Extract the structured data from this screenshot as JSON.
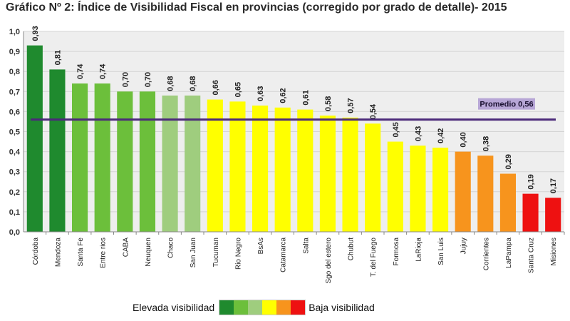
{
  "chart_data": {
    "type": "bar",
    "title": "Gráfico Nº 2: Índice de Visibilidad Fiscal en provincias (corregido por grado de detalle)- 2015",
    "categories": [
      "Córdoba",
      "Mendoza",
      "Santa Fe",
      "Entre rios",
      "CABA",
      "Neuquen",
      "Chaco",
      "San Juan",
      "Tucuman",
      "Rio Negro",
      "BsAs",
      "Catamarca",
      "Salta",
      "Sgo del estero",
      "Chubut",
      "T. del Fuego",
      "Formosa",
      "LaRioja",
      "San Luis",
      "Jujuy",
      "Corrientes",
      "LaPampa",
      "Santa Cruz",
      "Misiones"
    ],
    "values": [
      0.93,
      0.81,
      0.74,
      0.74,
      0.7,
      0.7,
      0.68,
      0.68,
      0.66,
      0.65,
      0.63,
      0.62,
      0.61,
      0.58,
      0.57,
      0.54,
      0.45,
      0.43,
      0.42,
      0.4,
      0.38,
      0.29,
      0.19,
      0.17
    ],
    "data_labels": [
      "0,93",
      "0,81",
      "0,74",
      "0,74",
      "0,70",
      "0,70",
      "0,68",
      "0,68",
      "0,66",
      "0,65",
      "0,63",
      "0,62",
      "0,61",
      "0,58",
      "0,57",
      "0,54",
      "0,45",
      "0,43",
      "0,42",
      "0,40",
      "0,38",
      "0,29",
      "0,19",
      "0,17"
    ],
    "color_levels": [
      0,
      0,
      1,
      1,
      1,
      1,
      2,
      2,
      3,
      3,
      3,
      3,
      3,
      3,
      3,
      3,
      3,
      3,
      3,
      4,
      4,
      4,
      5,
      5
    ],
    "ylim": [
      0,
      1
    ],
    "yticks": [
      "0,0",
      "0,1",
      "0,2",
      "0,3",
      "0,4",
      "0,5",
      "0,6",
      "0,7",
      "0,8",
      "0,9",
      "1,0"
    ],
    "grid": true,
    "average": {
      "value": 0.56,
      "label": "Promedio 0,56",
      "color": "#4b2a7a"
    },
    "legend": {
      "left": "Elevada visibilidad",
      "right": "Baja visibilidad",
      "colors": [
        "#1f8a2e",
        "#6cbf3b",
        "#9fcd7e",
        "#ffff00",
        "#f7941d",
        "#ee1111"
      ],
      "placement": "bottom"
    }
  }
}
